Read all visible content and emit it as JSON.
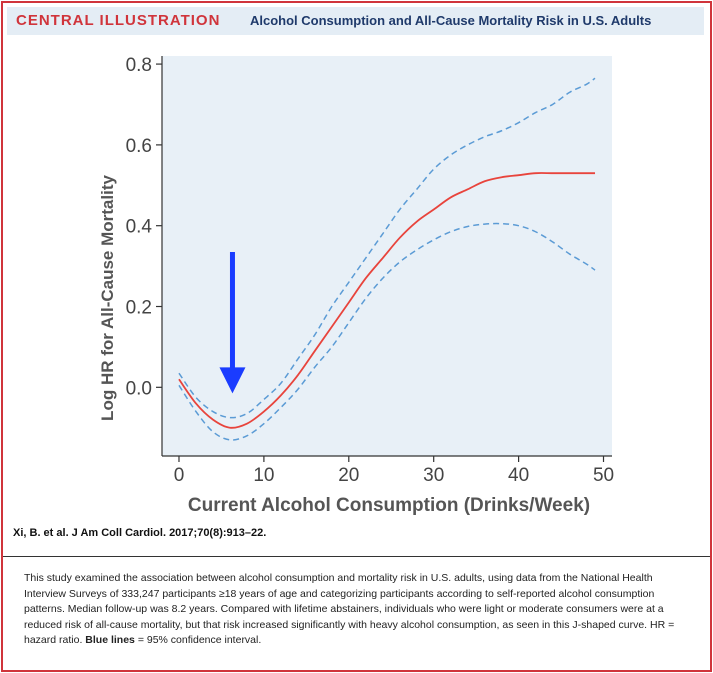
{
  "header": {
    "tag": "CENTRAL ILLUSTRATION",
    "title": "Alcohol Consumption and All-Cause Mortality Risk in U.S. Adults"
  },
  "chart_data": {
    "type": "line",
    "xlabel": "Current Alcohol Consumption (Drinks/Week)",
    "ylabel": "Log HR for All-Cause Mortality",
    "xlim": [
      -2,
      51
    ],
    "ylim": [
      -0.17,
      0.82
    ],
    "xticks": [
      "0",
      "10",
      "20",
      "30",
      "40",
      "50"
    ],
    "xtick_values": [
      0,
      10,
      20,
      30,
      40,
      50
    ],
    "yticks": [
      "0.0",
      "0.2",
      "0.4",
      "0.6",
      "0.8"
    ],
    "ytick_values": [
      0.0,
      0.2,
      0.4,
      0.6,
      0.8
    ],
    "x": [
      0,
      2,
      4,
      6,
      8,
      10,
      12,
      14,
      16,
      18,
      20,
      22,
      24,
      26,
      28,
      30,
      32,
      34,
      36,
      38,
      40,
      42,
      44,
      46,
      48,
      49
    ],
    "series": [
      {
        "values": [
          0.02,
          -0.04,
          -0.08,
          -0.1,
          -0.09,
          -0.06,
          -0.02,
          0.03,
          0.09,
          0.15,
          0.21,
          0.27,
          0.32,
          0.37,
          0.41,
          0.44,
          0.47,
          0.49,
          0.51,
          0.52,
          0.525,
          0.53,
          0.53,
          0.53,
          0.53,
          0.53
        ],
        "color": "#e8443c",
        "style": "solid"
      },
      {
        "values": [
          0.035,
          -0.025,
          -0.06,
          -0.075,
          -0.065,
          -0.03,
          0.01,
          0.07,
          0.13,
          0.2,
          0.26,
          0.32,
          0.38,
          0.44,
          0.49,
          0.54,
          0.575,
          0.6,
          0.62,
          0.635,
          0.655,
          0.68,
          0.7,
          0.73,
          0.75,
          0.765
        ],
        "color": "#5b9bd5",
        "style": "dashed"
      },
      {
        "values": [
          0.005,
          -0.06,
          -0.11,
          -0.13,
          -0.12,
          -0.09,
          -0.05,
          -0.005,
          0.05,
          0.1,
          0.16,
          0.22,
          0.27,
          0.31,
          0.34,
          0.365,
          0.385,
          0.398,
          0.404,
          0.405,
          0.4,
          0.385,
          0.36,
          0.33,
          0.305,
          0.29
        ],
        "color": "#5b9bd5",
        "style": "dashed"
      }
    ],
    "annotation": {
      "type": "arrow",
      "x": 6.3,
      "y_start": 0.335,
      "y_end": -0.015,
      "color": "#1a3cff"
    },
    "grid": false,
    "plot_background": "#e8f0f7"
  },
  "citation": "Xi, B. et al. J Am Coll Cardiol. 2017;70(8):913–22.",
  "caption": {
    "text": "This study examined the association between alcohol consumption and mortality risk in U.S. adults, using data from the National Health Interview Surveys of 333,247 participants ≥18 years of age and categorizing participants according to self-reported alcohol consumption patterns. Median follow-up was 8.2 years. Compared with lifetime abstainers, individuals who were light or moderate consumers were at a reduced risk of all-cause mortality, but that risk increased significantly with heavy alcohol consumption, as seen in this J-shaped curve. HR = hazard ratio. ",
    "bold": "Blue lines",
    "tail": " = 95% confidence interval."
  }
}
